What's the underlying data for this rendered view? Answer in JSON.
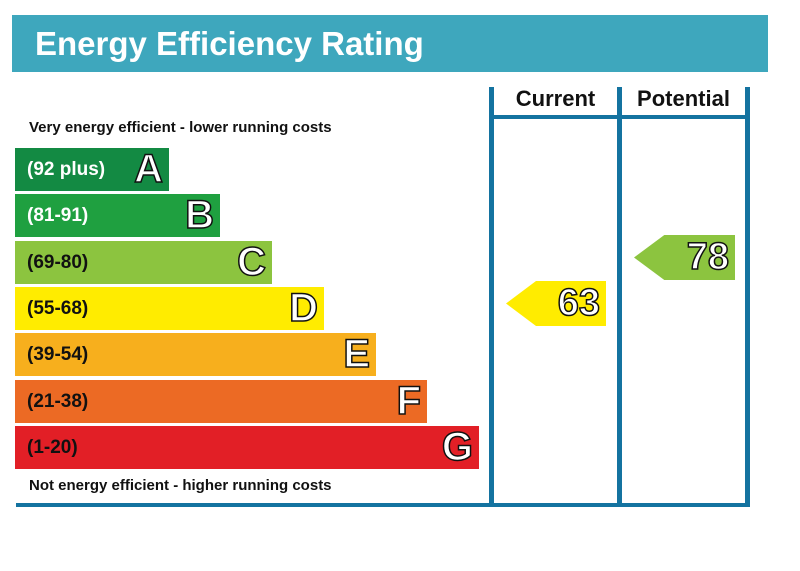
{
  "chart_data": {
    "type": "bar",
    "title": "Energy Efficiency Rating",
    "top_note": "Very energy efficient - lower running costs",
    "bottom_note": "Not energy efficient - higher running costs",
    "columns": [
      "Current",
      "Potential"
    ],
    "bands": [
      {
        "letter": "A",
        "range": "(92 plus)",
        "color": "#138a43",
        "text_color": "#ffffff"
      },
      {
        "letter": "B",
        "range": "(81-91)",
        "color": "#1fa040",
        "text_color": "#ffffff"
      },
      {
        "letter": "C",
        "range": "(69-80)",
        "color": "#8cc43f",
        "text_color": "#111111"
      },
      {
        "letter": "D",
        "range": "(55-68)",
        "color": "#ffec00",
        "text_color": "#111111"
      },
      {
        "letter": "E",
        "range": "(39-54)",
        "color": "#f7af1d",
        "text_color": "#111111"
      },
      {
        "letter": "F",
        "range": "(21-38)",
        "color": "#ec6a24",
        "text_color": "#111111"
      },
      {
        "letter": "G",
        "range": "(1-20)",
        "color": "#e21f26",
        "text_color": "#111111"
      }
    ],
    "current": {
      "value": "63",
      "band": "D",
      "color": "#ffec00"
    },
    "potential": {
      "value": "78",
      "band": "C",
      "color": "#8cc43f"
    }
  }
}
